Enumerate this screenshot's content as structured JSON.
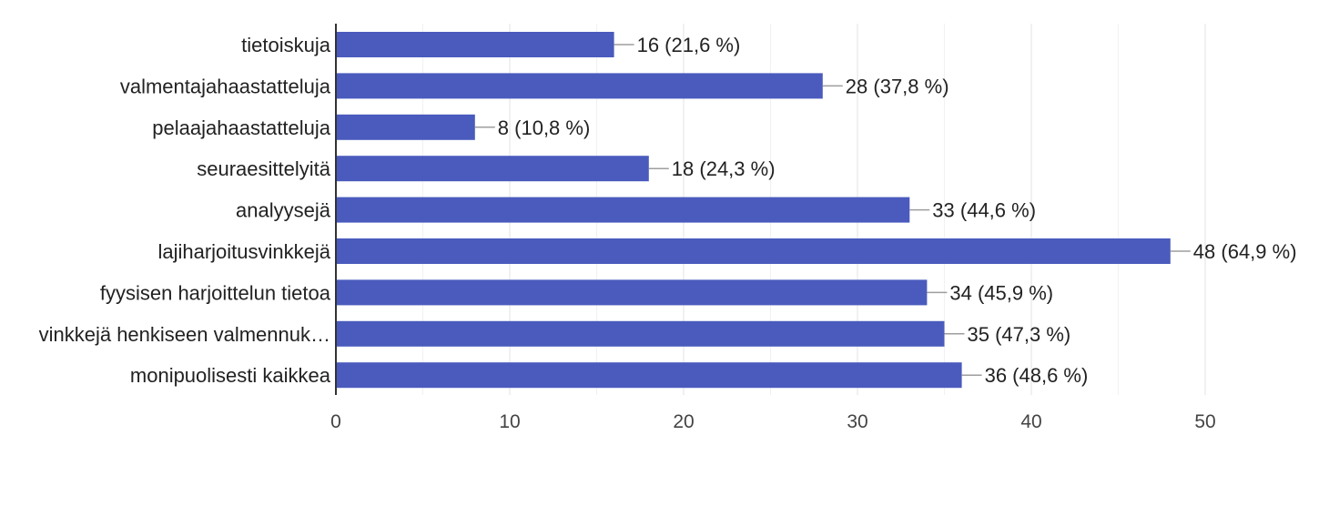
{
  "chart_data": {
    "type": "bar",
    "orientation": "horizontal",
    "categories": [
      "tietoiskuja",
      "valmentajahaastatteluja",
      "pelaajahaastatteluja",
      "seuraesittelyitä",
      "analyysejä",
      "lajiharjoitusvinkkejä",
      "fyysisen harjoittelun tietoa",
      "vinkkejä henkiseen valmennuk…",
      "monipuolisesti kaikkea"
    ],
    "values": [
      16,
      28,
      8,
      18,
      33,
      48,
      34,
      35,
      36
    ],
    "value_labels": [
      "16 (21,6 %)",
      "28 (37,8 %)",
      "8 (10,8 %)",
      "18 (24,3 %)",
      "33 (44,6 %)",
      "48 (64,9 %)",
      "34 (45,9 %)",
      "35 (47,3 %)",
      "36 (48,6 %)"
    ],
    "xlim": [
      0,
      50
    ],
    "x_ticks": [
      "0",
      "10",
      "20",
      "30",
      "40",
      "50"
    ],
    "grid": true,
    "legend": "none",
    "bar_color": "#4a5bbd"
  }
}
